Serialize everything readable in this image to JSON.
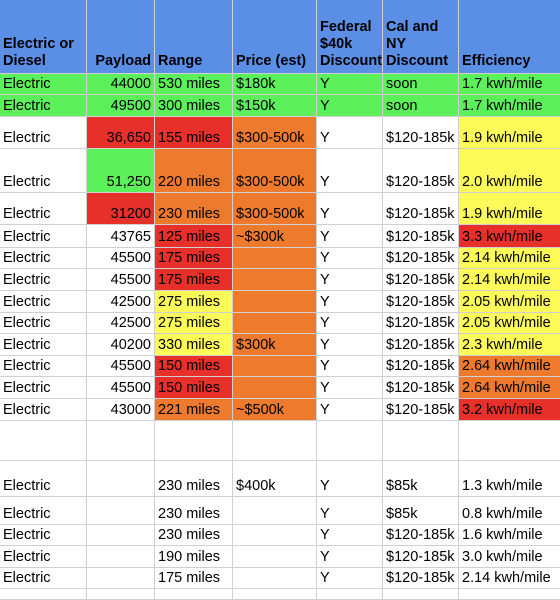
{
  "colors": {
    "header": "#5b8fe6",
    "green": "#5cf05a",
    "red": "#e8302a",
    "orange": "#ee7a2d",
    "yellow": "#fdfb5a",
    "white": "#ffffff"
  },
  "header": [
    "Electric or\nDiesel",
    "Payload",
    "Range",
    "Price (est)",
    "Federal\n$40k\nDiscount",
    "Cal and\nNY\nDiscount",
    "Efficiency"
  ],
  "rows": [
    {
      "cells": [
        "Electric",
        "44000",
        "530 miles",
        "$180k",
        "Y",
        "soon",
        "1.7 kwh/mile"
      ],
      "fills": [
        "green",
        "green",
        "green",
        "green",
        "green",
        "green",
        "green"
      ]
    },
    {
      "cells": [
        "Electric",
        "49500",
        "300 miles",
        "$150k",
        "Y",
        "soon",
        "1.7 kwh/mile"
      ],
      "fills": [
        "green",
        "green",
        "green",
        "green",
        "green",
        "green",
        "green"
      ]
    },
    {
      "cells": [
        "Electric",
        "36,650",
        "155 miles",
        "$300-500k",
        "Y",
        "$120-185k",
        "1.9 kwh/mile"
      ],
      "fills": [
        "white",
        "red",
        "red",
        "orange",
        "white",
        "white",
        "yellow"
      ]
    },
    {
      "cells": [
        "Electric",
        "51,250",
        "220 miles",
        "$300-500k",
        "Y",
        "$120-185k",
        "2.0 kwh/mile"
      ],
      "fills": [
        "white",
        "green",
        "orange",
        "orange",
        "white",
        "white",
        "yellow"
      ]
    },
    {
      "cells": [
        "Electric",
        "31200",
        "230 miles",
        "$300-500k",
        "Y",
        "$120-185k",
        "1.9 kwh/mile"
      ],
      "fills": [
        "white",
        "red",
        "orange",
        "orange",
        "white",
        "white",
        "yellow"
      ]
    },
    {
      "cells": [
        "Electric",
        "43765",
        "125 miles",
        "~$300k",
        "Y",
        "$120-185k",
        "3.3 kwh/mile"
      ],
      "fills": [
        "white",
        "white",
        "red",
        "orange",
        "white",
        "white",
        "red"
      ]
    },
    {
      "cells": [
        "Electric",
        "45500",
        "175 miles",
        "",
        "Y",
        "$120-185k",
        "2.14 kwh/mile"
      ],
      "fills": [
        "white",
        "white",
        "red",
        "orange",
        "white",
        "white",
        "yellow"
      ]
    },
    {
      "cells": [
        "Electric",
        "45500",
        "175 miles",
        "",
        "Y",
        "$120-185k",
        "2.14 kwh/mile"
      ],
      "fills": [
        "white",
        "white",
        "red",
        "orange",
        "white",
        "white",
        "yellow"
      ]
    },
    {
      "cells": [
        "Electric",
        "42500",
        "275 miles",
        "",
        "Y",
        "$120-185k",
        "2.05 kwh/mile"
      ],
      "fills": [
        "white",
        "white",
        "yellow",
        "orange",
        "white",
        "white",
        "yellow"
      ]
    },
    {
      "cells": [
        "Electric",
        "42500",
        "275 miles",
        "",
        "Y",
        "$120-185k",
        "2.05 kwh/mile"
      ],
      "fills": [
        "white",
        "white",
        "yellow",
        "orange",
        "white",
        "white",
        "yellow"
      ]
    },
    {
      "cells": [
        "Electric",
        "40200",
        "330 miles",
        "$300k",
        "Y",
        "$120-185k",
        "2.3 kwh/mile"
      ],
      "fills": [
        "white",
        "white",
        "yellow",
        "orange",
        "white",
        "white",
        "yellow"
      ]
    },
    {
      "cells": [
        "Electric",
        "45500",
        "150 miles",
        "",
        "Y",
        "$120-185k",
        "2.64 kwh/mile"
      ],
      "fills": [
        "white",
        "white",
        "red",
        "orange",
        "white",
        "white",
        "orange"
      ]
    },
    {
      "cells": [
        "Electric",
        "45500",
        "150 miles",
        "",
        "Y",
        "$120-185k",
        "2.64 kwh/mile"
      ],
      "fills": [
        "white",
        "white",
        "red",
        "orange",
        "white",
        "white",
        "orange"
      ]
    },
    {
      "cells": [
        "Electric",
        "43000",
        "221 miles",
        "~$500k",
        "Y",
        "$120-185k",
        "3.2 kwh/mile"
      ],
      "fills": [
        "white",
        "white",
        "orange",
        "orange",
        "white",
        "white",
        "red"
      ]
    },
    {
      "cells": [
        "",
        "",
        "",
        "",
        "",
        "",
        ""
      ],
      "fills": [
        "white",
        "white",
        "white",
        "white",
        "white",
        "white",
        "white"
      ]
    },
    {
      "cells": [
        "Electric",
        "",
        "230 miles",
        "$400k",
        "Y",
        "$85k",
        "1.3 kwh/mile"
      ],
      "fills": [
        "white",
        "white",
        "white",
        "white",
        "white",
        "white",
        "white"
      ]
    },
    {
      "cells": [
        "Electric",
        "",
        "230 miles",
        "",
        "Y",
        "$85k",
        "0.8 kwh/mile"
      ],
      "fills": [
        "white",
        "white",
        "white",
        "white",
        "white",
        "white",
        "white"
      ]
    },
    {
      "cells": [
        "Electric",
        "",
        "230 miles",
        "",
        "Y",
        "$120-185k",
        "1.6 kwh/mile"
      ],
      "fills": [
        "white",
        "white",
        "white",
        "white",
        "white",
        "white",
        "white"
      ]
    },
    {
      "cells": [
        "Electric",
        "",
        "190 miles",
        "",
        "Y",
        "$120-185k",
        "3.0 kwh/mile"
      ],
      "fills": [
        "white",
        "white",
        "white",
        "white",
        "white",
        "white",
        "white"
      ]
    },
    {
      "cells": [
        "Electric",
        "",
        "175 miles",
        "",
        "Y",
        "$120-185k",
        "2.14 kwh/mile"
      ],
      "fills": [
        "white",
        "white",
        "white",
        "white",
        "white",
        "white",
        "white"
      ]
    }
  ]
}
